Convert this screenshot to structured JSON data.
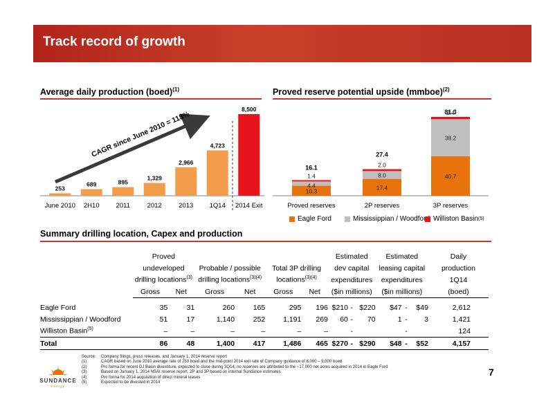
{
  "page": {
    "title": "Track record of growth",
    "page_number": "7"
  },
  "charts": {
    "production": {
      "title": "Average daily production (boed)",
      "title_sup": "(1)",
      "cagr_label": "CAGR since June 2010 = 118%"
    },
    "reserves": {
      "title": "Proved reserve potential upside (mmboe)",
      "title_sup": "(2)",
      "legend": [
        "Eagle Ford",
        "Mississippian / Woodford",
        "Williston Basin"
      ],
      "legend_sup": "(5)"
    }
  },
  "chart_data": [
    {
      "type": "bar",
      "title": "Average daily production (boed)",
      "categories": [
        "June 2010",
        "2H10",
        "2011",
        "2012",
        "2013",
        "1Q14",
        "2014 Exit"
      ],
      "values": [
        253,
        689,
        895,
        1329,
        2966,
        4723,
        8500
      ],
      "value_labels": [
        "253",
        "689",
        "895",
        "1,329",
        "2,966",
        "4,723",
        "8,500"
      ],
      "ylim": [
        0,
        8500
      ],
      "colors": {
        "bar": "#f39c4a",
        "exit_bar": "#e8141b"
      }
    },
    {
      "type": "bar",
      "stacked": true,
      "title": "Proved reserve potential upside (mmboe)",
      "categories": [
        "Proved reserves",
        "2P reserves",
        "3P reserves"
      ],
      "series": [
        {
          "name": "Eagle Ford",
          "values": [
            10.3,
            17.4,
            40.7
          ],
          "color": "#e8720c"
        },
        {
          "name": "Mississippian / Woodford",
          "values": [
            4.4,
            8.0,
            38.2
          ],
          "color": "#bfbfbf"
        },
        {
          "name": "Williston Basin",
          "values": [
            1.4,
            2.0,
            2.4
          ],
          "color": "#e8141b"
        }
      ],
      "totals": [
        "16.1",
        "27.4",
        "81.3"
      ],
      "ylim": [
        0,
        81.3
      ]
    }
  ],
  "summary": {
    "title": "Summary drilling location, Capex and production",
    "group_headers": {
      "proved": [
        "Proved",
        "undeveloped",
        "drilling locations"
      ],
      "proved_sup": "(3)",
      "probable": [
        "",
        "Probable / possible",
        "drilling locations"
      ],
      "probable_sup": "(3)(4)",
      "total3p": [
        "",
        "Total 3P drilling",
        "locations"
      ],
      "total3p_sup": "(3)(4)",
      "dev_capex": [
        "Estimated",
        "dev capital",
        "expenditures"
      ],
      "leasing": [
        "Estimated",
        "leasing capital",
        "expenditures"
      ],
      "daily": [
        "Daily",
        "production",
        "1Q14"
      ]
    },
    "col_headers": [
      "Gross",
      "Net",
      "Gross",
      "Net",
      "Gross",
      "Net",
      "($in millions)",
      "($in millions)",
      "(boed)"
    ],
    "rows": [
      {
        "name": "Eagle Ford",
        "sup": "",
        "pu_g": "35",
        "pu_n": "31",
        "pp_g": "260",
        "pp_n": "165",
        "t_g": "295",
        "t_n": "196",
        "dev_lo": "$210",
        "dev_sep": "-",
        "dev_hi": "$220",
        "lease_lo": "$47",
        "lease_sep": "-",
        "lease_hi": "$49",
        "prod": "2,612"
      },
      {
        "name": "Mississippian / Woodford",
        "sup": "",
        "pu_g": "51",
        "pu_n": "17",
        "pp_g": "1,140",
        "pp_n": "252",
        "t_g": "1,191",
        "t_n": "269",
        "dev_lo": "60",
        "dev_sep": "-",
        "dev_hi": "70",
        "lease_lo": "1",
        "lease_sep": "-",
        "lease_hi": "3",
        "prod": "1,421"
      },
      {
        "name": "Williston Basin",
        "sup": "(5)",
        "pu_g": "–",
        "pu_n": "–",
        "pp_g": "–",
        "pp_n": "–",
        "t_g": "–",
        "t_n": "–",
        "dev_lo": "",
        "dev_sep": "-",
        "dev_hi": "",
        "lease_lo": "",
        "lease_sep": "-",
        "lease_hi": "",
        "prod": "124"
      }
    ],
    "total": {
      "name": "Total",
      "pu_g": "86",
      "pu_n": "48",
      "pp_g": "1,400",
      "pp_n": "417",
      "t_g": "1,486",
      "t_n": "465",
      "dev_lo": "$270",
      "dev_sep": "-",
      "dev_hi": "$290",
      "lease_lo": "$48",
      "lease_sep": "-",
      "lease_hi": "$52",
      "prod": "4,157"
    }
  },
  "footnotes": [
    [
      "Source:",
      "Company filings, press releases, and January 1, 2014 reserve report"
    ],
    [
      "(1)",
      "CAGR based on June 2010 average rate of 253 boed and the mid-point 2014 exit rate of Company guidance of 8,000 – 9,000 boed"
    ],
    [
      "(2)",
      "Pro forma for recent DJ Basin divestiture, expected to close during 3Q14; no reserves are attributed to the ~17,000 net acres acquired in 2014 in Eagle Ford"
    ],
    [
      "(3)",
      "Based on January 1, 2014 NSAI reserve report, 2P and 3P based on internal Sundance estimates"
    ],
    [
      "(4)",
      "Pro forma for 2014 acquisition of direct mineral leases"
    ],
    [
      "(5)",
      "Expected to be divested in 2014"
    ]
  ],
  "logo": {
    "name": "SUNDANCE",
    "sub": "energy"
  }
}
